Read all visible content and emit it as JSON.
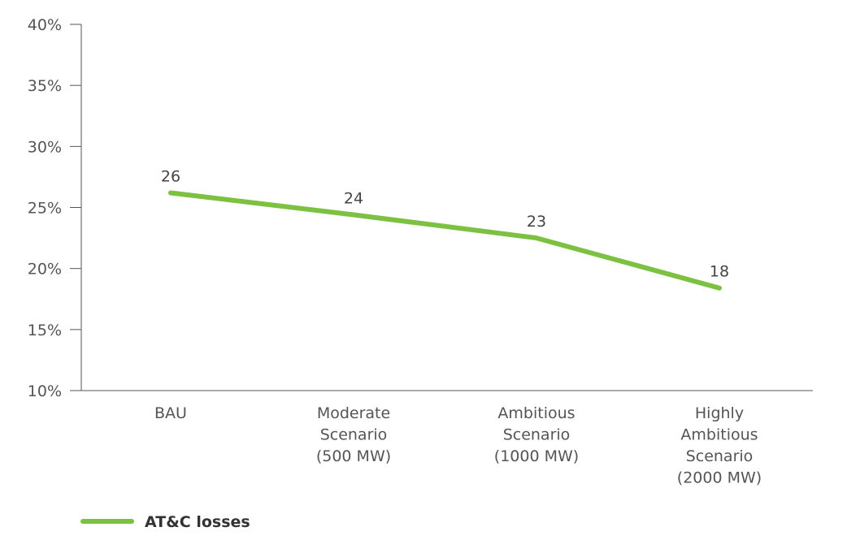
{
  "chart_data": {
    "type": "line",
    "categories": [
      [
        "BAU"
      ],
      [
        "Moderate",
        "Scenario",
        "(500 MW)"
      ],
      [
        "Ambitious",
        "Scenario",
        "(1000 MW)"
      ],
      [
        "Highly",
        "Ambitious",
        "Scenario",
        "(2000 MW)"
      ]
    ],
    "series": [
      {
        "name": "AT&C losses",
        "values": [
          26.2,
          24.4,
          22.5,
          18.4
        ],
        "labels": [
          "26",
          "24",
          "23",
          "18"
        ],
        "color": "#7cc142"
      }
    ],
    "ylim": [
      10,
      40
    ],
    "yticks": [
      "10%",
      "15%",
      "20%",
      "25%",
      "30%",
      "35%",
      "40%"
    ],
    "ytick_values": [
      10,
      15,
      20,
      25,
      30,
      35,
      40
    ],
    "title": "",
    "xlabel": "",
    "ylabel": "",
    "grid": false,
    "legend_position": "bottom-left",
    "axis_color": "#555555"
  }
}
